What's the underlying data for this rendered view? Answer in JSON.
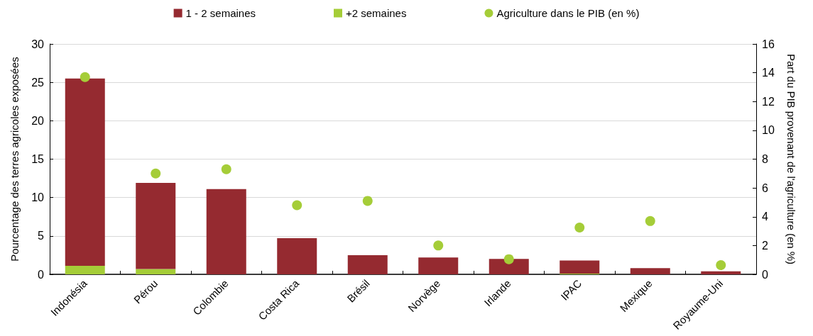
{
  "chart_data": {
    "type": "bar",
    "stacked": true,
    "categories": [
      "Indonésia",
      "Pérou",
      "Colombie",
      "Costa Rica",
      "Brésil",
      "Norvège",
      "Irlande",
      "IPAC",
      "Mexique",
      "Royaume-Uni"
    ],
    "ylabel": "Pourcentage des terres agricoles exposées",
    "y2label": "Part du PIB provenant de l'agriculture (en %)",
    "series": [
      {
        "name": "+2 semaines",
        "color": "#a5cd38",
        "values": [
          1.1,
          0.7,
          0,
          0,
          0,
          0,
          0,
          0.1,
          0,
          0
        ]
      },
      {
        "name": "1 - 2 semaines",
        "color": "#952a30",
        "values": [
          24.4,
          11.2,
          11.1,
          4.7,
          2.5,
          2.2,
          2.0,
          1.7,
          0.8,
          0.4
        ]
      },
      {
        "name": "Agriculture dans le PIB (en %)",
        "type": "scatter",
        "axis": "y2",
        "marker": "circle",
        "color": "#a5cd38",
        "values": [
          13.7,
          7.0,
          7.3,
          4.8,
          5.1,
          2.0,
          1.05,
          3.25,
          3.7,
          0.64
        ]
      }
    ],
    "ylim": [
      0,
      30
    ],
    "yticks": [
      0,
      5,
      10,
      15,
      20,
      25,
      30
    ],
    "y2lim": [
      0,
      16
    ],
    "y2ticks": [
      0,
      2,
      4,
      6,
      8,
      10,
      12,
      14,
      16
    ],
    "grid": "y",
    "legend": "top"
  }
}
